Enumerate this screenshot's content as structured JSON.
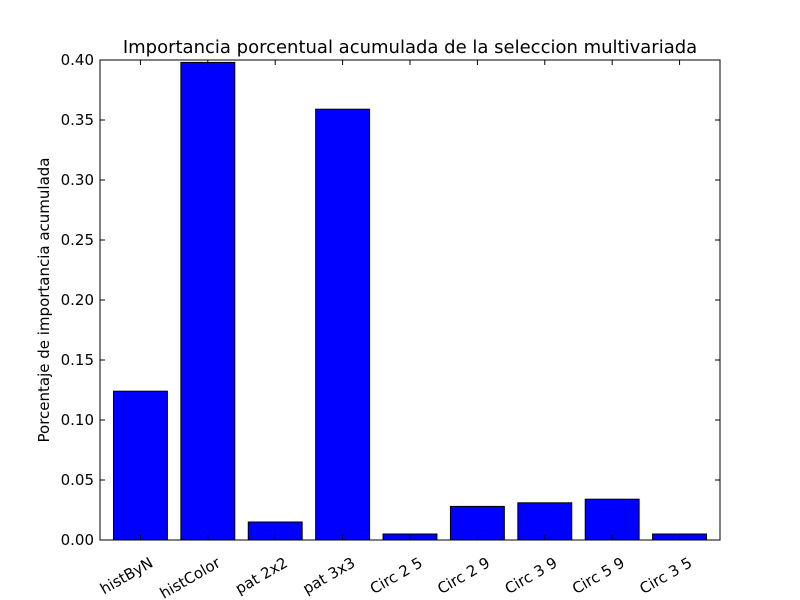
{
  "chart_data": {
    "type": "bar",
    "title": "Importancia porcentual acumulada de la seleccion multivariada",
    "xlabel": "",
    "ylabel": "Porcentaje de importancia acumulada",
    "categories": [
      "histByN",
      "histColor",
      "pat 2x2",
      "pat 3x3",
      "Circ 2 5",
      "Circ 2 9",
      "Circ 3 9",
      "Circ 5 9",
      "Circ 3 5"
    ],
    "values": [
      0.124,
      0.398,
      0.015,
      0.359,
      0.005,
      0.028,
      0.031,
      0.034,
      0.005
    ],
    "ylim": [
      0,
      0.4
    ],
    "yticks": [
      "0.00",
      "0.05",
      "0.10",
      "0.15",
      "0.20",
      "0.25",
      "0.30",
      "0.35",
      "0.40"
    ],
    "grid": false,
    "bar_color": "#0000ff",
    "edge_color": "#000000"
  }
}
